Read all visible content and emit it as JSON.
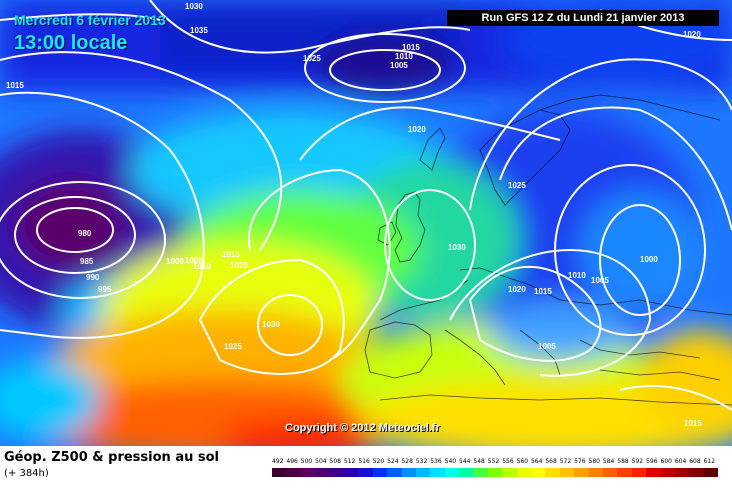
{
  "header": {
    "date": "Mercredi 6 février 2013",
    "time": "13:00 locale",
    "run": "Run GFS 12 Z du Lundi 21 janvier 2013"
  },
  "copyright": "Copyright © 2012 Meteociel.fr",
  "footer": {
    "title": "Géop. Z500 & pression au sol",
    "subtitle": "(+ 384h)"
  },
  "legend": {
    "values": [
      "492",
      "496",
      "500",
      "504",
      "508",
      "512",
      "516",
      "520",
      "524",
      "528",
      "532",
      "536",
      "540",
      "544",
      "548",
      "552",
      "556",
      "560",
      "564",
      "568",
      "572",
      "576",
      "580",
      "584",
      "588",
      "592",
      "596",
      "600",
      "604",
      "608",
      "612"
    ],
    "colors": [
      "#3a0030",
      "#4a0048",
      "#5a005e",
      "#4c0070",
      "#3a0090",
      "#2a00b0",
      "#1a10d0",
      "#0030ff",
      "#0060ff",
      "#0090ff",
      "#00b8ff",
      "#00e0ff",
      "#00ffe0",
      "#00ffa0",
      "#40ff40",
      "#80ff00",
      "#b8ff00",
      "#e8ff00",
      "#ffff00",
      "#ffe000",
      "#ffc000",
      "#ffa000",
      "#ff8000",
      "#ff6000",
      "#ff4000",
      "#ff2000",
      "#e00000",
      "#c00000",
      "#a00000",
      "#800000",
      "#600000"
    ]
  },
  "isobar_labels": [
    "1030",
    "1035",
    "1015",
    "1025",
    "1015",
    "1010",
    "1005",
    "1020",
    "1020",
    "1025",
    "980",
    "985",
    "990",
    "995",
    "1000",
    "1005",
    "1010",
    "1015",
    "1020",
    "1030",
    "1025",
    "1030",
    "1020",
    "1015",
    "1010",
    "1005",
    "1000",
    "1005",
    "1015"
  ]
}
